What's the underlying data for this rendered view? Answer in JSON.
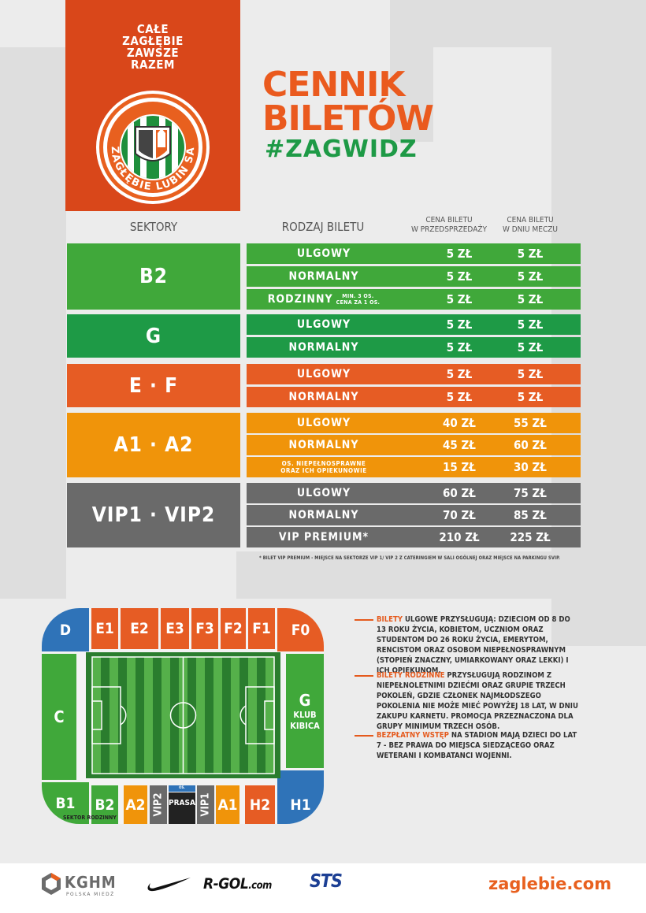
{
  "colors": {
    "orange_dark": "#d9471a",
    "orange": "#e65c24",
    "amber": "#f0940a",
    "green": "#40a83a",
    "green_dark": "#1e9a46",
    "gray": "#6a6a6a",
    "blue": "#2f73b8"
  },
  "header": {
    "slogan": [
      "CAŁE",
      "ZAGŁĘBIE",
      "ZAWSZE",
      "RAZEM"
    ],
    "logo_text": "ZAGŁĘBIE LUBIN SA",
    "title_lines": [
      "CENNIK",
      "BILETÓW"
    ],
    "hashtag": "#ZAGWIDZ"
  },
  "columns": {
    "sectors": "SEKTORY",
    "ticket_type": "RODZAJ BILETU",
    "presale": [
      "CENA BILETU",
      "W PRZEDSPRZEDAŻY"
    ],
    "matchday": [
      "CENA BILETU",
      "W DNIU MECZU"
    ]
  },
  "price_table": [
    {
      "sector": "B2",
      "rows": [
        {
          "type": "ULGOWY",
          "presale": "5 ZŁ",
          "matchday": "5 ZŁ"
        },
        {
          "type": "NORMALNY",
          "presale": "5 ZŁ",
          "matchday": "5 ZŁ"
        },
        {
          "type": "RODZINNY",
          "type_note": [
            "MIN. 3 OS.",
            "CENA ZA 1 OS."
          ],
          "presale": "5 ZŁ",
          "matchday": "5 ZŁ"
        }
      ]
    },
    {
      "sector": "G",
      "rows": [
        {
          "type": "ULGOWY",
          "presale": "5 ZŁ",
          "matchday": "5 ZŁ"
        },
        {
          "type": "NORMALNY",
          "presale": "5 ZŁ",
          "matchday": "5 ZŁ"
        }
      ]
    },
    {
      "sector": "E · F",
      "rows": [
        {
          "type": "ULGOWY",
          "presale": "5 ZŁ",
          "matchday": "5 ZŁ"
        },
        {
          "type": "NORMALNY",
          "presale": "5 ZŁ",
          "matchday": "5 ZŁ"
        }
      ]
    },
    {
      "sector": "A1 · A2",
      "rows": [
        {
          "type": "ULGOWY",
          "presale": "40 ZŁ",
          "matchday": "55 ZŁ"
        },
        {
          "type": "NORMALNY",
          "presale": "45 ZŁ",
          "matchday": "60 ZŁ"
        },
        {
          "type_lines": [
            "OS. NIEPEŁNOSPRAWNE",
            "ORAZ ICH OPIEKUNOWIE"
          ],
          "presale": "15 ZŁ",
          "matchday": "30 ZŁ"
        }
      ]
    },
    {
      "sector": "VIP1 · VIP2",
      "rows": [
        {
          "type": "ULGOWY",
          "presale": "60 ZŁ",
          "matchday": "75 ZŁ"
        },
        {
          "type": "NORMALNY",
          "presale": "70 ZŁ",
          "matchday": "85 ZŁ"
        },
        {
          "type": "VIP PREMIUM*",
          "presale": "210 ZŁ",
          "matchday": "225 ZŁ"
        }
      ]
    }
  ],
  "footnote": "* BILET VIP PREMIUM - MIEJSCE NA SEKTORZE VIP 1/ VIP 2 Z CATERINGIEM W SALI OGÓLNEJ ORAZ MIEJSCE NA PARKINGU SVIP.",
  "stadium_map": {
    "top_sectors": [
      "D",
      "E1",
      "E2",
      "E3",
      "F3",
      "F2",
      "F1",
      "F0"
    ],
    "left_sector": "C",
    "right_sector": "G",
    "right_sector_sub": [
      "KLUB",
      "KIBICA"
    ],
    "bottom_sectors": [
      "B1",
      "B2",
      "A2",
      "VIP2",
      "PRASA",
      "VIP1",
      "A1",
      "H2",
      "H1"
    ],
    "disabled_label": "OS. NIEPEŁNOSPR.",
    "family_sector_label": "SEKTOR RODZINNY"
  },
  "notes": [
    {
      "lead": "BILETY",
      "text": " ULGOWE PRZYSŁUGUJĄ: DZIECIOM OD 8 DO 13 ROKU ŻYCIA, KOBIETOM, UCZNIOM ORAZ STUDENTOM DO 26 ROKU ŻYCIA, EMERYTOM, RENCISTOM ORAZ OSOBOM NIEPEŁNOSPRAWNYM (STOPIEŃ ZNACZNY, UMIARKOWANY ORAZ LEKKI) I ICH OPIEKUNOM."
    },
    {
      "lead": "BILETY RODZINNE",
      "text": " PRZYSŁUGUJĄ RODZINOM Z NIEPEŁNOLETNIMI DZIEĆMI ORAZ GRUPIE TRZECH POKOLEŃ, GDZIE CZŁONEK NAJMŁODSZEGO POKOLENIA NIE MOŻE MIEĆ POWYŻEJ 18 LAT, W DNIU ZAKUPU KARNETU. PROMOCJA PRZEZNACZONA DLA GRUPY MINIMUM TRZECH OSÓB."
    },
    {
      "lead": "BEZPŁATNY WSTĘP",
      "text": " NA STADION MAJĄ DZIECI DO LAT 7 - BEZ PRAWA DO MIEJSCA SIEDZĄCEGO ORAZ WETERANI I KOMBATANCI WOJENNI."
    }
  ],
  "footer": {
    "sponsors": [
      "KGHM",
      "POLSKA MIEDŹ",
      "R-GOL",
      ".com",
      "STS"
    ],
    "nike_logo": "nike-swoosh",
    "website": "zaglebie.com"
  }
}
